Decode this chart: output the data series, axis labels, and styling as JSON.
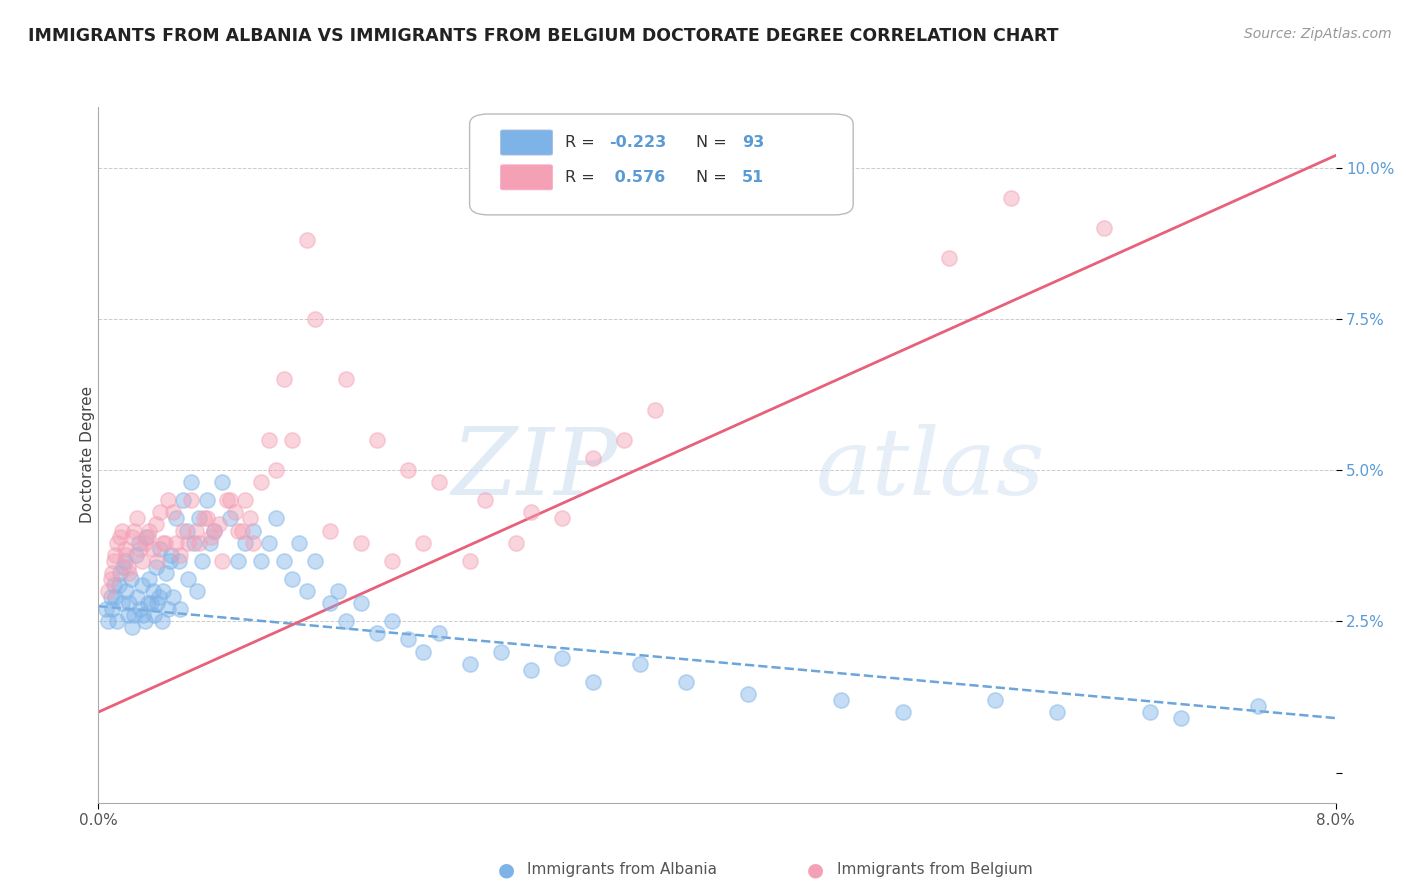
{
  "title": "IMMIGRANTS FROM ALBANIA VS IMMIGRANTS FROM BELGIUM DOCTORATE DEGREE CORRELATION CHART",
  "source": "Source: ZipAtlas.com",
  "ylabel": "Doctorate Degree",
  "watermark_zip": "ZIP",
  "watermark_atlas": "atlas",
  "xlim": [
    0.0,
    8.0
  ],
  "ylim": [
    -0.5,
    11.0
  ],
  "yticks": [
    0.0,
    2.5,
    5.0,
    7.5,
    10.0
  ],
  "ytick_labels": [
    "",
    "2.5%",
    "5.0%",
    "7.5%",
    "10.0%"
  ],
  "color_blue": "#7EB3E8",
  "color_pink": "#F4A0B5",
  "color_blue_line": "#5B9BD5",
  "color_pink_line": "#E8607A",
  "background": "#FFFFFF",
  "grid_color": "#CCCCCC",
  "alb_trend_x0": 0.0,
  "alb_trend_y0": 2.75,
  "alb_trend_x1": 8.0,
  "alb_trend_y1": 0.9,
  "bel_trend_x0": 0.0,
  "bel_trend_y0": 1.0,
  "bel_trend_x1": 8.0,
  "bel_trend_y1": 10.2,
  "albania_x": [
    0.05,
    0.08,
    0.1,
    0.12,
    0.14,
    0.15,
    0.17,
    0.18,
    0.19,
    0.2,
    0.21,
    0.22,
    0.24,
    0.25,
    0.26,
    0.27,
    0.28,
    0.3,
    0.31,
    0.32,
    0.33,
    0.35,
    0.36,
    0.37,
    0.38,
    0.4,
    0.41,
    0.42,
    0.44,
    0.45,
    0.47,
    0.48,
    0.5,
    0.52,
    0.55,
    0.57,
    0.6,
    0.62,
    0.65,
    0.67,
    0.7,
    0.72,
    0.75,
    0.8,
    0.85,
    0.9,
    0.95,
    1.0,
    1.05,
    1.1,
    1.15,
    1.2,
    1.25,
    1.3,
    1.35,
    1.4,
    1.5,
    1.55,
    1.6,
    1.7,
    1.8,
    1.9,
    2.0,
    2.1,
    2.2,
    2.4,
    2.6,
    2.8,
    3.0,
    3.2,
    3.5,
    3.8,
    4.2,
    4.8,
    5.2,
    5.8,
    6.2,
    6.8,
    7.0,
    7.5,
    0.06,
    0.09,
    0.11,
    0.13,
    0.16,
    0.23,
    0.29,
    0.34,
    0.39,
    0.46,
    0.53,
    0.58,
    0.64
  ],
  "albania_y": [
    2.7,
    2.9,
    3.1,
    2.5,
    3.3,
    2.8,
    3.5,
    3.0,
    2.6,
    2.8,
    3.2,
    2.4,
    3.6,
    2.9,
    3.8,
    2.7,
    3.1,
    2.5,
    3.9,
    2.8,
    3.2,
    3.0,
    2.6,
    3.4,
    2.8,
    3.7,
    2.5,
    3.0,
    3.3,
    2.7,
    3.6,
    2.9,
    4.2,
    3.5,
    4.5,
    4.0,
    4.8,
    3.8,
    4.2,
    3.5,
    4.5,
    3.8,
    4.0,
    4.8,
    4.2,
    3.5,
    3.8,
    4.0,
    3.5,
    3.8,
    4.2,
    3.5,
    3.2,
    3.8,
    3.0,
    3.5,
    2.8,
    3.0,
    2.5,
    2.8,
    2.3,
    2.5,
    2.2,
    2.0,
    2.3,
    1.8,
    2.0,
    1.7,
    1.9,
    1.5,
    1.8,
    1.5,
    1.3,
    1.2,
    1.0,
    1.2,
    1.0,
    1.0,
    0.9,
    1.1,
    2.5,
    2.7,
    2.9,
    3.1,
    3.4,
    2.6,
    2.6,
    2.8,
    2.9,
    3.5,
    2.7,
    3.2,
    3.0
  ],
  "belgium_x": [
    0.08,
    0.1,
    0.12,
    0.15,
    0.18,
    0.2,
    0.22,
    0.25,
    0.28,
    0.3,
    0.33,
    0.35,
    0.38,
    0.4,
    0.43,
    0.45,
    0.5,
    0.55,
    0.6,
    0.65,
    0.7,
    0.75,
    0.8,
    0.85,
    0.9,
    0.95,
    1.0,
    1.1,
    1.2,
    1.35,
    1.5,
    1.7,
    1.9,
    2.1,
    2.4,
    2.7,
    3.0,
    3.4,
    5.5,
    5.9,
    6.5,
    0.06,
    0.09,
    0.11,
    0.14,
    0.17,
    0.19,
    0.23,
    0.27,
    0.32,
    0.37,
    0.42,
    0.48,
    0.53,
    0.58,
    0.63,
    0.68,
    0.73,
    0.78,
    0.83,
    0.88,
    0.93,
    0.98,
    1.05,
    1.15,
    1.25,
    1.4,
    1.6,
    1.8,
    2.0,
    2.2,
    2.5,
    2.8,
    3.2,
    3.6
  ],
  "belgium_y": [
    3.2,
    3.5,
    3.8,
    4.0,
    3.6,
    3.3,
    3.9,
    4.2,
    3.5,
    3.8,
    4.0,
    3.7,
    3.5,
    4.3,
    3.8,
    4.5,
    3.8,
    4.0,
    4.5,
    3.8,
    4.2,
    4.0,
    3.5,
    4.5,
    4.0,
    4.5,
    3.8,
    5.5,
    6.5,
    8.8,
    4.0,
    3.8,
    3.5,
    3.8,
    3.5,
    3.8,
    4.2,
    5.5,
    8.5,
    9.5,
    9.0,
    3.0,
    3.3,
    3.6,
    3.9,
    3.7,
    3.4,
    4.0,
    3.7,
    3.9,
    4.1,
    3.8,
    4.3,
    3.6,
    3.8,
    4.0,
    4.2,
    3.9,
    4.1,
    4.5,
    4.3,
    4.0,
    4.2,
    4.8,
    5.0,
    5.5,
    7.5,
    6.5,
    5.5,
    5.0,
    4.8,
    4.5,
    4.3,
    5.2,
    6.0
  ]
}
